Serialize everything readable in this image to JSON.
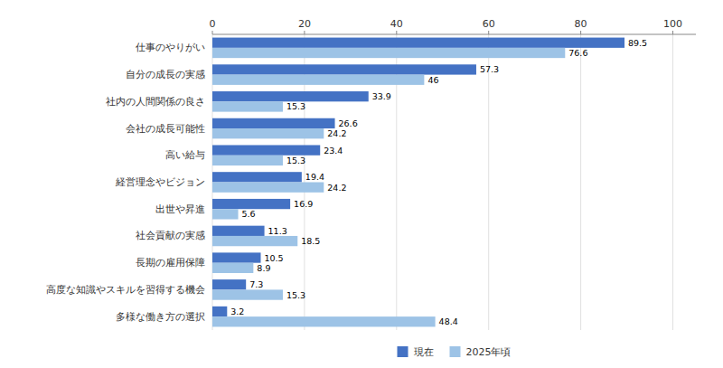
{
  "chart_data": {
    "type": "bar",
    "orientation": "horizontal",
    "categories": [
      "仕事のやりがい",
      "自分の成長の実感",
      "社内の人間関係の良さ",
      "会社の成長可能性",
      "高い給与",
      "経営理念やビジョン",
      "出世や昇進",
      "社会貢献の実感",
      "長期の雇用保障",
      "高度な知識やスキルを習得する機会",
      "多様な働き方の選択"
    ],
    "series": [
      {
        "name": "現在",
        "color": "#4472C4",
        "values": [
          89.5,
          57.3,
          33.9,
          26.6,
          23.4,
          19.4,
          16.9,
          11.3,
          10.5,
          7.3,
          3.2
        ]
      },
      {
        "name": "2025年頃",
        "color": "#9DC3E6",
        "values": [
          76.6,
          46.0,
          15.3,
          24.2,
          15.3,
          24.2,
          5.6,
          18.5,
          8.9,
          15.3,
          48.4
        ]
      }
    ],
    "xlim": [
      0,
      105
    ],
    "xticks": [
      0,
      20,
      40,
      60,
      80,
      100
    ],
    "grid": true,
    "legend": "bottom",
    "data_labels": true
  }
}
